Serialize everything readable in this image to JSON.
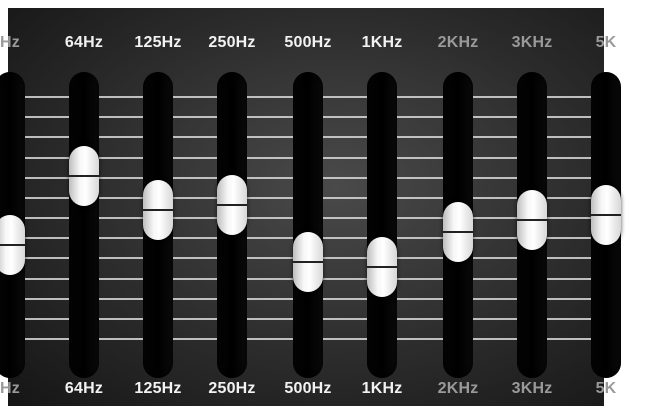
{
  "equalizer": {
    "bands": [
      {
        "label": "Hz",
        "level": 0.42,
        "dim": true
      },
      {
        "label": "64Hz",
        "level": 0.7
      },
      {
        "label": "125Hz",
        "level": 0.56
      },
      {
        "label": "250Hz",
        "level": 0.58
      },
      {
        "label": "500Hz",
        "level": 0.35
      },
      {
        "label": "1KHz",
        "level": 0.33
      },
      {
        "label": "2KHz",
        "level": 0.47,
        "dim": true
      },
      {
        "label": "3KHz",
        "level": 0.52,
        "dim": true
      },
      {
        "label": "5K",
        "level": 0.54,
        "dim": true
      }
    ],
    "bottom_labels": [
      "Hz",
      "64Hz",
      "125Hz",
      "250Hz",
      "500Hz",
      "1KHz",
      "2KHz",
      "3KHz",
      "5K"
    ]
  }
}
